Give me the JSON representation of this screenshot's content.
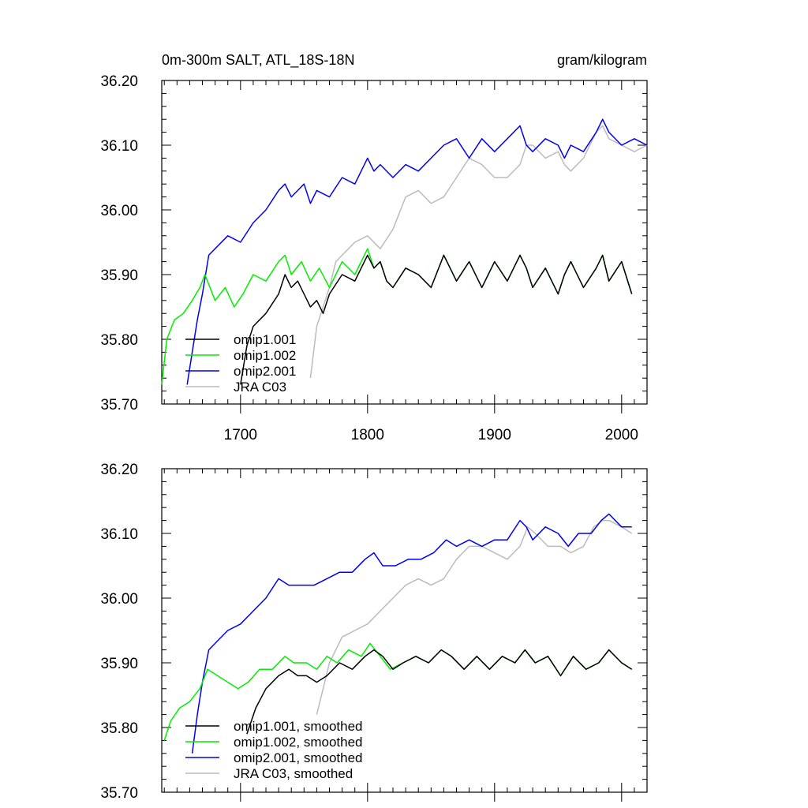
{
  "chart_data": [
    {
      "type": "line",
      "title": "0m-300m SALT, ATL_18S-18N",
      "units": "gram/kilogram",
      "xlabel": "",
      "ylabel": "",
      "xlim": [
        1638,
        2020
      ],
      "ylim": [
        35.7,
        36.2
      ],
      "x_ticks": [
        1700,
        1800,
        1900,
        2000
      ],
      "x_tick_labels": [
        "1700",
        "1800",
        "1900",
        "2000"
      ],
      "y_ticks": [
        35.7,
        35.8,
        35.9,
        36.0,
        36.1,
        36.2
      ],
      "y_tick_labels": [
        "35.70",
        "35.80",
        "35.90",
        "36.00",
        "36.10",
        "36.20"
      ],
      "legend_position": "bottom-left",
      "series": [
        {
          "name": "omip1.001",
          "color": "#000000",
          "x": [
            1700,
            1705,
            1710,
            1720,
            1730,
            1735,
            1740,
            1745,
            1750,
            1755,
            1760,
            1765,
            1770,
            1780,
            1790,
            1800,
            1805,
            1810,
            1815,
            1820,
            1830,
            1840,
            1850,
            1860,
            1865,
            1870,
            1880,
            1890,
            1900,
            1910,
            1920,
            1925,
            1930,
            1940,
            1950,
            1955,
            1960,
            1970,
            1980,
            1985,
            1990,
            2000,
            2008
          ],
          "y": [
            35.73,
            35.79,
            35.82,
            35.84,
            35.87,
            35.9,
            35.88,
            35.89,
            35.87,
            35.85,
            35.86,
            35.84,
            35.87,
            35.9,
            35.89,
            35.93,
            35.91,
            35.92,
            35.89,
            35.88,
            35.91,
            35.9,
            35.88,
            35.93,
            35.91,
            35.89,
            35.92,
            35.88,
            35.92,
            35.89,
            35.93,
            35.91,
            35.88,
            35.91,
            35.87,
            35.9,
            35.92,
            35.88,
            35.91,
            35.93,
            35.89,
            35.92,
            35.87
          ]
        },
        {
          "name": "omip1.002",
          "color": "#00ee00",
          "x": [
            1638,
            1642,
            1648,
            1655,
            1662,
            1668,
            1672,
            1680,
            1688,
            1695,
            1702,
            1710,
            1720,
            1730,
            1735,
            1740,
            1748,
            1755,
            1762,
            1770,
            1780,
            1790,
            1800,
            1805,
            1810,
            1815,
            1820,
            1830,
            1840,
            1850,
            1860,
            1865,
            1870,
            1880,
            1890,
            1900,
            1910,
            1920,
            1925,
            1930,
            1940,
            1950,
            1955,
            1960,
            1970,
            1980,
            1985,
            1990,
            2000,
            2008
          ],
          "y": [
            35.73,
            35.8,
            35.83,
            35.84,
            35.86,
            35.88,
            35.9,
            35.86,
            35.88,
            35.85,
            35.87,
            35.9,
            35.89,
            35.92,
            35.93,
            35.9,
            35.92,
            35.89,
            35.91,
            35.88,
            35.92,
            35.9,
            35.94,
            35.91,
            35.92,
            35.89,
            35.88,
            35.91,
            35.9,
            35.88,
            35.93,
            35.91,
            35.89,
            35.92,
            35.88,
            35.92,
            35.89,
            35.93,
            35.91,
            35.88,
            35.91,
            35.87,
            35.9,
            35.92,
            35.88,
            35.91,
            35.93,
            35.89,
            35.92,
            35.87
          ]
        },
        {
          "name": "omip2.001",
          "color": "#0000ee",
          "x": [
            1658,
            1662,
            1666,
            1670,
            1675,
            1680,
            1690,
            1700,
            1710,
            1720,
            1730,
            1735,
            1740,
            1745,
            1750,
            1755,
            1760,
            1770,
            1780,
            1790,
            1800,
            1805,
            1810,
            1820,
            1830,
            1840,
            1850,
            1860,
            1870,
            1880,
            1890,
            1900,
            1910,
            1920,
            1925,
            1930,
            1940,
            1950,
            1955,
            1960,
            1970,
            1980,
            1985,
            1990,
            2000,
            2010,
            2020
          ],
          "y": [
            35.73,
            35.78,
            35.83,
            35.87,
            35.93,
            35.94,
            35.96,
            35.95,
            35.98,
            36.0,
            36.03,
            36.04,
            36.02,
            36.03,
            36.04,
            36.01,
            36.03,
            36.02,
            36.05,
            36.04,
            36.08,
            36.06,
            36.07,
            36.05,
            36.07,
            36.06,
            36.08,
            36.1,
            36.11,
            36.08,
            36.11,
            36.09,
            36.11,
            36.13,
            36.1,
            36.09,
            36.11,
            36.1,
            36.08,
            36.1,
            36.09,
            36.12,
            36.14,
            36.12,
            36.1,
            36.11,
            36.1
          ]
        },
        {
          "name": "JRA C03",
          "color": "#bbbbbb",
          "x": [
            1755,
            1760,
            1765,
            1770,
            1775,
            1780,
            1790,
            1800,
            1810,
            1820,
            1830,
            1840,
            1850,
            1860,
            1870,
            1880,
            1890,
            1900,
            1910,
            1920,
            1925,
            1930,
            1940,
            1950,
            1955,
            1960,
            1970,
            1980,
            1985,
            1990,
            2000,
            2010,
            2020
          ],
          "y": [
            35.74,
            35.82,
            35.85,
            35.88,
            35.92,
            35.93,
            35.95,
            35.96,
            35.94,
            35.97,
            36.02,
            36.03,
            36.01,
            36.02,
            36.05,
            36.08,
            36.07,
            36.05,
            36.05,
            36.07,
            36.1,
            36.1,
            36.08,
            36.09,
            36.07,
            36.06,
            36.08,
            36.12,
            36.13,
            36.11,
            36.1,
            36.09,
            36.1
          ]
        }
      ]
    },
    {
      "type": "line",
      "title": "",
      "xlim": [
        1638,
        2020
      ],
      "ylim": [
        35.7,
        36.2
      ],
      "x_ticks": [
        1700,
        1800,
        1900,
        2000
      ],
      "y_ticks": [
        35.7,
        35.8,
        35.9,
        36.0,
        36.1,
        36.2
      ],
      "y_tick_labels": [
        "35.70",
        "35.80",
        "35.90",
        "36.00",
        "36.10",
        "36.20"
      ],
      "legend_position": "bottom-left",
      "series": [
        {
          "name": "omip1.001, smoothed",
          "color": "#000000",
          "x": [
            1705,
            1712,
            1720,
            1730,
            1738,
            1745,
            1752,
            1760,
            1768,
            1778,
            1788,
            1798,
            1805,
            1812,
            1820,
            1828,
            1838,
            1848,
            1858,
            1866,
            1876,
            1886,
            1896,
            1906,
            1916,
            1924,
            1932,
            1942,
            1952,
            1962,
            1972,
            1982,
            1990,
            2000,
            2008
          ],
          "y": [
            35.79,
            35.83,
            35.86,
            35.88,
            35.89,
            35.88,
            35.88,
            35.87,
            35.88,
            35.9,
            35.89,
            35.91,
            35.92,
            35.91,
            35.89,
            35.9,
            35.91,
            35.9,
            35.92,
            35.91,
            35.89,
            35.91,
            35.89,
            35.91,
            35.9,
            35.92,
            35.9,
            35.91,
            35.88,
            35.91,
            35.89,
            35.9,
            35.92,
            35.9,
            35.89
          ]
        },
        {
          "name": "omip1.002, smoothed",
          "color": "#00ee00",
          "x": [
            1640,
            1645,
            1652,
            1660,
            1668,
            1674,
            1682,
            1690,
            1698,
            1706,
            1715,
            1725,
            1735,
            1742,
            1752,
            1760,
            1768,
            1776,
            1785,
            1795,
            1802,
            1810,
            1818,
            1828,
            1838,
            1848,
            1858,
            1866,
            1876,
            1886,
            1896,
            1906,
            1916,
            1924,
            1932,
            1942,
            1952,
            1962,
            1972,
            1982,
            1990,
            2000,
            2008
          ],
          "y": [
            35.78,
            35.81,
            35.83,
            35.84,
            35.86,
            35.89,
            35.88,
            35.87,
            35.86,
            35.87,
            35.89,
            35.89,
            35.91,
            35.9,
            35.9,
            35.89,
            35.91,
            35.9,
            35.92,
            35.91,
            35.93,
            35.91,
            35.89,
            35.9,
            35.91,
            35.9,
            35.92,
            35.91,
            35.89,
            35.91,
            35.89,
            35.91,
            35.9,
            35.92,
            35.9,
            35.91,
            35.88,
            35.91,
            35.89,
            35.9,
            35.92,
            35.9,
            35.89
          ]
        },
        {
          "name": "omip2.001, smoothed",
          "color": "#0000ee",
          "x": [
            1662,
            1666,
            1670,
            1675,
            1680,
            1690,
            1700,
            1710,
            1720,
            1730,
            1738,
            1748,
            1758,
            1768,
            1778,
            1788,
            1798,
            1805,
            1812,
            1822,
            1832,
            1842,
            1852,
            1862,
            1870,
            1880,
            1890,
            1900,
            1910,
            1920,
            1925,
            1930,
            1940,
            1950,
            1958,
            1966,
            1976,
            1984,
            1990,
            2000,
            2008
          ],
          "y": [
            35.76,
            35.82,
            35.87,
            35.92,
            35.93,
            35.95,
            35.96,
            35.98,
            36.0,
            36.03,
            36.02,
            36.02,
            36.02,
            36.03,
            36.04,
            36.04,
            36.06,
            36.07,
            36.05,
            36.05,
            36.06,
            36.06,
            36.07,
            36.09,
            36.08,
            36.09,
            36.08,
            36.09,
            36.09,
            36.12,
            36.11,
            36.09,
            36.11,
            36.1,
            36.08,
            36.1,
            36.1,
            36.12,
            36.13,
            36.11,
            36.11
          ]
        },
        {
          "name": "JRA C03, smoothed",
          "color": "#bbbbbb",
          "x": [
            1760,
            1765,
            1770,
            1775,
            1780,
            1790,
            1800,
            1810,
            1820,
            1830,
            1840,
            1850,
            1860,
            1870,
            1880,
            1890,
            1900,
            1910,
            1920,
            1926,
            1932,
            1942,
            1952,
            1960,
            1970,
            1978,
            1985,
            1990,
            2000,
            2008
          ],
          "y": [
            35.82,
            35.86,
            35.9,
            35.92,
            35.94,
            35.95,
            35.96,
            35.98,
            36.0,
            36.02,
            36.03,
            36.02,
            36.03,
            36.06,
            36.08,
            36.08,
            36.07,
            36.06,
            36.08,
            36.11,
            36.1,
            36.08,
            36.08,
            36.07,
            36.08,
            36.11,
            36.12,
            36.12,
            36.11,
            36.1
          ]
        }
      ]
    }
  ]
}
